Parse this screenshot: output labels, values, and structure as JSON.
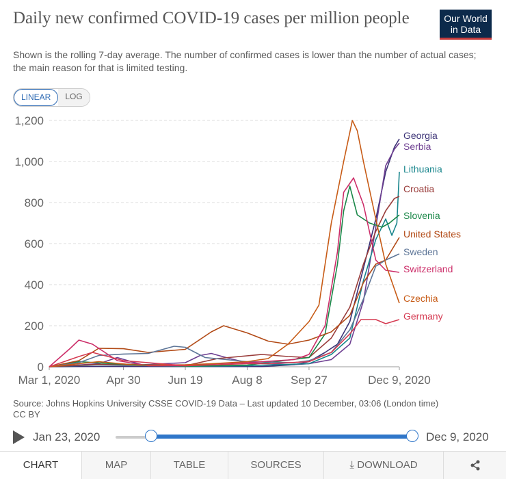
{
  "header": {
    "title": "Daily new confirmed COVID-19 cases per million people",
    "subtitle": "Shown is the rolling 7-day average. The number of confirmed cases is lower than the number of actual cases; the main reason for that is limited testing.",
    "logo_line1": "Our World",
    "logo_line2": "in Data"
  },
  "scale_toggle": {
    "linear": "LINEAR",
    "log": "LOG",
    "selected": "LINEAR"
  },
  "colors": {
    "accent": "#2f76c9",
    "logo_bg": "#0c2a4b",
    "logo_bar": "#c43a3a"
  },
  "chart_data": {
    "type": "line",
    "xlim": [
      "2020-03-01",
      "2020-12-09"
    ],
    "ylim": [
      0,
      1200
    ],
    "yticks": [
      0,
      200,
      400,
      600,
      800,
      1000,
      1200
    ],
    "ytick_labels": [
      "0",
      "200",
      "400",
      "600",
      "800",
      "1,000",
      "1,200"
    ],
    "xtick_labels": [
      "Mar 1, 2020",
      "Apr 30",
      "Jun 19",
      "Aug 8",
      "Sep 27",
      "Dec 9, 2020"
    ],
    "xtick_dates": [
      "2020-03-01",
      "2020-04-30",
      "2020-06-19",
      "2020-08-08",
      "2020-09-27",
      "2020-12-09"
    ],
    "grid": true,
    "series": [
      {
        "name": "Georgia",
        "color": "#3b3276",
        "points": [
          [
            "2020-03-01",
            0
          ],
          [
            "2020-04-15",
            2
          ],
          [
            "2020-06-19",
            1
          ],
          [
            "2020-08-20",
            1
          ],
          [
            "2020-09-15",
            10
          ],
          [
            "2020-09-27",
            25
          ],
          [
            "2020-10-10",
            70
          ],
          [
            "2020-10-20",
            110
          ],
          [
            "2020-10-30",
            220
          ],
          [
            "2020-11-10",
            480
          ],
          [
            "2020-11-20",
            720
          ],
          [
            "2020-11-28",
            950
          ],
          [
            "2020-12-05",
            1070
          ],
          [
            "2020-12-09",
            1110
          ]
        ]
      },
      {
        "name": "Serbia",
        "color": "#6d3e91",
        "points": [
          [
            "2020-03-01",
            0
          ],
          [
            "2020-04-10",
            15
          ],
          [
            "2020-04-25",
            45
          ],
          [
            "2020-05-15",
            10
          ],
          [
            "2020-06-19",
            20
          ],
          [
            "2020-07-01",
            55
          ],
          [
            "2020-07-10",
            65
          ],
          [
            "2020-07-25",
            40
          ],
          [
            "2020-08-08",
            20
          ],
          [
            "2020-09-15",
            10
          ],
          [
            "2020-09-27",
            15
          ],
          [
            "2020-10-15",
            35
          ],
          [
            "2020-10-30",
            110
          ],
          [
            "2020-11-10",
            320
          ],
          [
            "2020-11-20",
            680
          ],
          [
            "2020-11-28",
            980
          ],
          [
            "2020-12-05",
            1060
          ],
          [
            "2020-12-09",
            1090
          ]
        ]
      },
      {
        "name": "Lithuania",
        "color": "#18858c",
        "points": [
          [
            "2020-03-01",
            0
          ],
          [
            "2020-04-10",
            10
          ],
          [
            "2020-06-19",
            2
          ],
          [
            "2020-08-08",
            5
          ],
          [
            "2020-09-27",
            15
          ],
          [
            "2020-10-15",
            60
          ],
          [
            "2020-10-30",
            140
          ],
          [
            "2020-11-10",
            420
          ],
          [
            "2020-11-20",
            620
          ],
          [
            "2020-11-28",
            720
          ],
          [
            "2020-12-03",
            640
          ],
          [
            "2020-12-07",
            700
          ],
          [
            "2020-12-09",
            950
          ]
        ]
      },
      {
        "name": "Croatia",
        "color": "#9a3d3b",
        "points": [
          [
            "2020-03-01",
            0
          ],
          [
            "2020-04-10",
            12
          ],
          [
            "2020-06-19",
            5
          ],
          [
            "2020-07-15",
            40
          ],
          [
            "2020-08-20",
            60
          ],
          [
            "2020-09-10",
            50
          ],
          [
            "2020-09-27",
            45
          ],
          [
            "2020-10-15",
            140
          ],
          [
            "2020-10-30",
            290
          ],
          [
            "2020-11-10",
            500
          ],
          [
            "2020-11-20",
            660
          ],
          [
            "2020-11-28",
            760
          ],
          [
            "2020-12-05",
            820
          ],
          [
            "2020-12-09",
            830
          ]
        ]
      },
      {
        "name": "Slovenia",
        "color": "#1b8849",
        "points": [
          [
            "2020-03-01",
            0
          ],
          [
            "2020-03-25",
            25
          ],
          [
            "2020-04-20",
            15
          ],
          [
            "2020-06-19",
            3
          ],
          [
            "2020-08-08",
            8
          ],
          [
            "2020-09-27",
            45
          ],
          [
            "2020-10-10",
            160
          ],
          [
            "2020-10-20",
            500
          ],
          [
            "2020-10-25",
            760
          ],
          [
            "2020-10-30",
            880
          ],
          [
            "2020-11-05",
            740
          ],
          [
            "2020-11-15",
            700
          ],
          [
            "2020-11-25",
            680
          ],
          [
            "2020-12-01",
            700
          ],
          [
            "2020-12-09",
            740
          ]
        ]
      },
      {
        "name": "United States",
        "color": "#b24a16",
        "points": [
          [
            "2020-03-01",
            0
          ],
          [
            "2020-03-25",
            30
          ],
          [
            "2020-04-10",
            90
          ],
          [
            "2020-04-30",
            88
          ],
          [
            "2020-05-20",
            70
          ],
          [
            "2020-06-19",
            85
          ],
          [
            "2020-07-10",
            170
          ],
          [
            "2020-07-20",
            200
          ],
          [
            "2020-08-08",
            165
          ],
          [
            "2020-08-25",
            125
          ],
          [
            "2020-09-10",
            110
          ],
          [
            "2020-09-27",
            130
          ],
          [
            "2020-10-15",
            170
          ],
          [
            "2020-10-30",
            250
          ],
          [
            "2020-11-10",
            410
          ],
          [
            "2020-11-20",
            500
          ],
          [
            "2020-11-28",
            520
          ],
          [
            "2020-12-09",
            630
          ]
        ]
      },
      {
        "name": "Sweden",
        "color": "#5d7597",
        "points": [
          [
            "2020-03-01",
            0
          ],
          [
            "2020-03-25",
            20
          ],
          [
            "2020-04-10",
            55
          ],
          [
            "2020-04-30",
            62
          ],
          [
            "2020-05-20",
            65
          ],
          [
            "2020-06-10",
            100
          ],
          [
            "2020-06-19",
            95
          ],
          [
            "2020-07-05",
            45
          ],
          [
            "2020-08-08",
            25
          ],
          [
            "2020-09-15",
            20
          ],
          [
            "2020-09-27",
            30
          ],
          [
            "2020-10-15",
            70
          ],
          [
            "2020-10-30",
            180
          ],
          [
            "2020-11-10",
            330
          ],
          [
            "2020-11-20",
            490
          ],
          [
            "2020-11-28",
            520
          ],
          [
            "2020-12-09",
            550
          ]
        ]
      },
      {
        "name": "Switzerland",
        "color": "#cc2e69",
        "points": [
          [
            "2020-03-01",
            0
          ],
          [
            "2020-03-18",
            90
          ],
          [
            "2020-03-25",
            130
          ],
          [
            "2020-04-05",
            110
          ],
          [
            "2020-04-25",
            30
          ],
          [
            "2020-05-20",
            5
          ],
          [
            "2020-06-19",
            5
          ],
          [
            "2020-07-15",
            15
          ],
          [
            "2020-08-08",
            20
          ],
          [
            "2020-09-15",
            35
          ],
          [
            "2020-09-27",
            60
          ],
          [
            "2020-10-10",
            200
          ],
          [
            "2020-10-20",
            560
          ],
          [
            "2020-10-25",
            850
          ],
          [
            "2020-11-02",
            920
          ],
          [
            "2020-11-10",
            790
          ],
          [
            "2020-11-20",
            520
          ],
          [
            "2020-11-28",
            470
          ],
          [
            "2020-12-09",
            460
          ]
        ]
      },
      {
        "name": "Czechia",
        "color": "#c75b16",
        "points": [
          [
            "2020-03-01",
            0
          ],
          [
            "2020-04-10",
            25
          ],
          [
            "2020-05-10",
            8
          ],
          [
            "2020-06-19",
            10
          ],
          [
            "2020-07-10",
            15
          ],
          [
            "2020-08-08",
            25
          ],
          [
            "2020-08-25",
            40
          ],
          [
            "2020-09-10",
            110
          ],
          [
            "2020-09-27",
            220
          ],
          [
            "2020-10-05",
            300
          ],
          [
            "2020-10-15",
            700
          ],
          [
            "2020-10-25",
            1000
          ],
          [
            "2020-11-01",
            1200
          ],
          [
            "2020-11-05",
            1150
          ],
          [
            "2020-11-10",
            1000
          ],
          [
            "2020-11-20",
            720
          ],
          [
            "2020-11-28",
            500
          ],
          [
            "2020-12-09",
            310
          ]
        ]
      },
      {
        "name": "Germany",
        "color": "#d53b52",
        "points": [
          [
            "2020-03-01",
            0
          ],
          [
            "2020-03-25",
            50
          ],
          [
            "2020-04-05",
            70
          ],
          [
            "2020-04-30",
            30
          ],
          [
            "2020-06-19",
            5
          ],
          [
            "2020-08-08",
            15
          ],
          [
            "2020-08-25",
            15
          ],
          [
            "2020-09-27",
            25
          ],
          [
            "2020-10-15",
            70
          ],
          [
            "2020-10-30",
            160
          ],
          [
            "2020-11-08",
            230
          ],
          [
            "2020-11-20",
            230
          ],
          [
            "2020-11-28",
            210
          ],
          [
            "2020-12-09",
            230
          ]
        ]
      }
    ]
  },
  "source": {
    "line1": "Source: Johns Hopkins University CSSE COVID-19 Data – Last updated 10 December, 03:06 (London time)",
    "line2": "CC BY"
  },
  "timeline": {
    "start_label": "Jan 23, 2020",
    "end_label": "Dec 9, 2020",
    "selected_start": "2020-03-01",
    "selected_end": "2020-12-09"
  },
  "tabs": [
    {
      "label": "CHART",
      "icon": ""
    },
    {
      "label": "MAP",
      "icon": ""
    },
    {
      "label": "TABLE",
      "icon": ""
    },
    {
      "label": "SOURCES",
      "icon": ""
    },
    {
      "label": "DOWNLOAD",
      "icon": "download-icon"
    },
    {
      "label": "",
      "icon": "share-icon"
    }
  ],
  "active_tab": "CHART"
}
